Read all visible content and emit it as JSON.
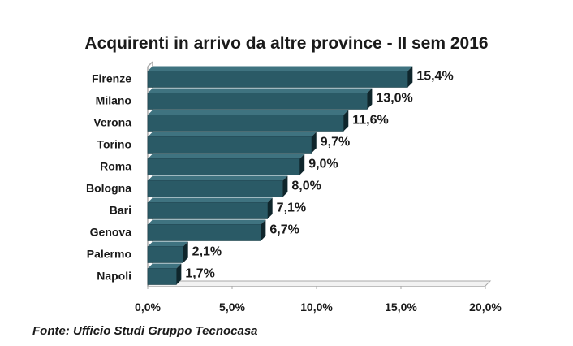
{
  "chart_data": {
    "type": "bar",
    "orientation": "horizontal",
    "title": "Acquirenti in arrivo da altre province - II sem 2016",
    "categories": [
      "Firenze",
      "Milano",
      "Verona",
      "Torino",
      "Roma",
      "Bologna",
      "Bari",
      "Genova",
      "Palermo",
      "Napoli"
    ],
    "values": [
      15.4,
      13.0,
      11.6,
      9.7,
      9.0,
      8.0,
      7.1,
      6.7,
      2.1,
      1.7
    ],
    "value_labels": [
      "15,4%",
      "13,0%",
      "11,6%",
      "9,7%",
      "9,0%",
      "8,0%",
      "7,1%",
      "6,7%",
      "2,1%",
      "1,7%"
    ],
    "x_ticks": [
      0,
      5,
      10,
      15,
      20
    ],
    "x_tick_labels": [
      "0,0%",
      "5,0%",
      "10,0%",
      "15,0%",
      "20,0%"
    ],
    "xlim": [
      0,
      20
    ],
    "grid": false,
    "legend": "none",
    "colors": {
      "bar_front": "#2a5a66",
      "bar_side": "#0f262c",
      "bar_top": "#3f7380",
      "axis": "#a8a8a8",
      "text": "#1a1a1a"
    }
  },
  "source": "Fonte: Ufficio Studi Gruppo Tecnocasa"
}
